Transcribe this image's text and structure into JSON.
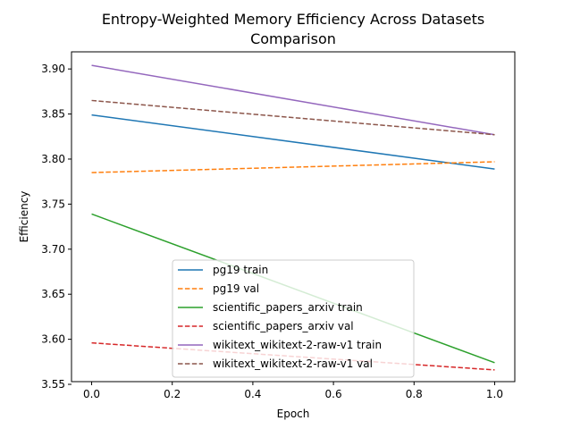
{
  "chart_data": {
    "type": "line",
    "title_lines": [
      "Entropy-Weighted Memory Efficiency Across Datasets",
      "Comparison"
    ],
    "xlabel": "Epoch",
    "ylabel": "Efficiency",
    "xlim": [
      -0.05,
      1.05
    ],
    "ylim": [
      3.553,
      3.919
    ],
    "xticks": [
      0.0,
      0.2,
      0.4,
      0.6,
      0.8,
      1.0
    ],
    "xtick_labels": [
      "0.0",
      "0.2",
      "0.4",
      "0.6",
      "0.8",
      "1.0"
    ],
    "yticks": [
      3.55,
      3.6,
      3.65,
      3.7,
      3.75,
      3.8,
      3.85,
      3.9
    ],
    "ytick_labels": [
      "3.55",
      "3.60",
      "3.65",
      "3.70",
      "3.75",
      "3.80",
      "3.85",
      "3.90"
    ],
    "grid": false,
    "legend_position": "lower center",
    "series": [
      {
        "name": "pg19 train",
        "x": [
          0,
          1
        ],
        "y": [
          3.849,
          3.789
        ],
        "color": "#1f77b4",
        "dashed": false
      },
      {
        "name": "pg19 val",
        "x": [
          0,
          1
        ],
        "y": [
          3.785,
          3.797
        ],
        "color": "#ff7f0e",
        "dashed": true
      },
      {
        "name": "scientific_papers_arxiv train",
        "x": [
          0,
          1
        ],
        "y": [
          3.739,
          3.574
        ],
        "color": "#2ca02c",
        "dashed": false
      },
      {
        "name": "scientific_papers_arxiv val",
        "x": [
          0,
          1
        ],
        "y": [
          3.596,
          3.566
        ],
        "color": "#d62728",
        "dashed": true
      },
      {
        "name": "wikitext_wikitext-2-raw-v1 train",
        "x": [
          0,
          1
        ],
        "y": [
          3.904,
          3.827
        ],
        "color": "#9467bd",
        "dashed": false
      },
      {
        "name": "wikitext_wikitext-2-raw-v1 val",
        "x": [
          0,
          1
        ],
        "y": [
          3.865,
          3.827
        ],
        "color": "#8c564b",
        "dashed": true
      }
    ]
  }
}
